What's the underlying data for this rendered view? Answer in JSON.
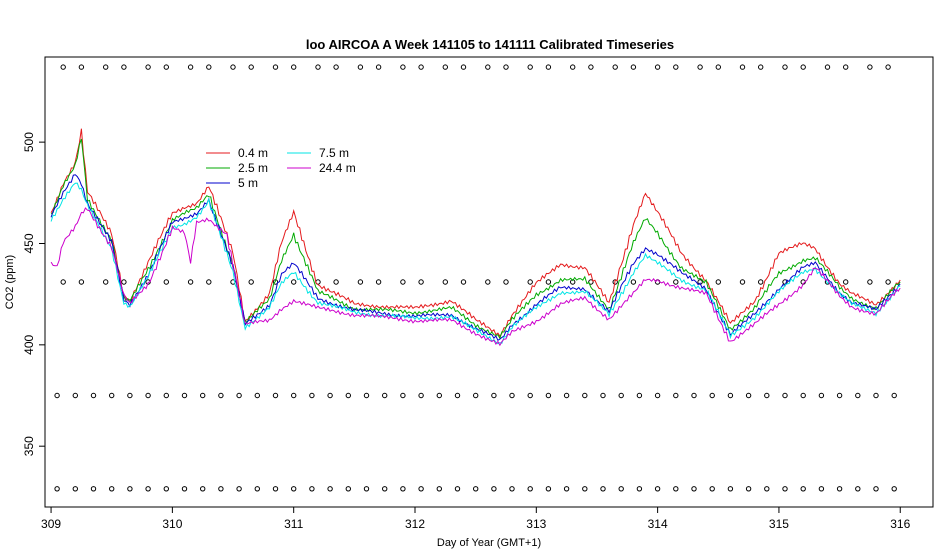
{
  "chart_data": {
    "type": "line",
    "title": "loo AIRCOA A  Week 141105 to 141111  Calibrated Timeseries",
    "xlabel": "Day of Year (GMT+1)",
    "ylabel": "CO2 (ppm)",
    "xlim": [
      308.95,
      316.27
    ],
    "ylim": [
      320,
      542
    ],
    "xticks": [
      309,
      310,
      311,
      312,
      313,
      314,
      315,
      316
    ],
    "yticks": [
      350,
      400,
      450,
      500
    ],
    "grid": false,
    "legend": {
      "placement": "top-left",
      "entries": [
        {
          "name": "0.4 m",
          "color": "#e41a1c"
        },
        {
          "name": "2.5 m",
          "color": "#00aa00"
        },
        {
          "name": "5 m",
          "color": "#0000cc"
        },
        {
          "name": "7.5 m",
          "color": "#00e5e5"
        },
        {
          "name": "24.4 m",
          "color": "#cc00cc"
        }
      ]
    },
    "series": [
      {
        "name": "0.4 m",
        "color": "#e41a1c",
        "x": [
          309.0,
          309.1,
          309.2,
          309.25,
          309.3,
          309.5,
          309.6,
          309.65,
          309.8,
          310.0,
          310.1,
          310.2,
          310.3,
          310.5,
          310.6,
          310.8,
          310.9,
          311.0,
          311.2,
          311.5,
          312.0,
          312.3,
          312.5,
          312.7,
          312.8,
          313.0,
          313.2,
          313.4,
          313.6,
          313.8,
          313.9,
          314.0,
          314.2,
          314.4,
          314.6,
          314.8,
          315.0,
          315.2,
          315.3,
          315.5,
          315.6,
          315.8,
          316.0
        ],
        "y": [
          465,
          480,
          490,
          505,
          475,
          455,
          425,
          422,
          440,
          465,
          468,
          470,
          478,
          445,
          412,
          425,
          450,
          465,
          430,
          420,
          418,
          422,
          412,
          405,
          415,
          430,
          440,
          438,
          420,
          460,
          475,
          465,
          445,
          432,
          410,
          422,
          445,
          450,
          448,
          430,
          425,
          420,
          432
        ]
      },
      {
        "name": "2.5 m",
        "color": "#00aa00",
        "x": [
          309.0,
          309.1,
          309.2,
          309.25,
          309.3,
          309.5,
          309.6,
          309.65,
          309.8,
          310.0,
          310.1,
          310.2,
          310.3,
          310.5,
          310.6,
          310.8,
          310.9,
          311.0,
          311.2,
          311.5,
          312.0,
          312.3,
          312.5,
          312.7,
          312.8,
          313.0,
          313.2,
          313.4,
          313.6,
          313.8,
          313.9,
          314.0,
          314.2,
          314.4,
          314.6,
          314.8,
          315.0,
          315.2,
          315.3,
          315.5,
          315.6,
          315.8,
          316.0
        ],
        "y": [
          464,
          478,
          488,
          502,
          472,
          452,
          423,
          421,
          437,
          462,
          465,
          467,
          474,
          440,
          411,
          422,
          442,
          455,
          426,
          418,
          416,
          418,
          410,
          404,
          412,
          425,
          432,
          432,
          418,
          450,
          462,
          455,
          438,
          430,
          408,
          418,
          435,
          442,
          443,
          428,
          423,
          418,
          431
        ]
      },
      {
        "name": "5 m",
        "color": "#0000cc",
        "x": [
          309.0,
          309.1,
          309.2,
          309.25,
          309.3,
          309.5,
          309.6,
          309.65,
          309.8,
          310.0,
          310.1,
          310.2,
          310.3,
          310.5,
          310.6,
          310.8,
          310.9,
          311.0,
          311.2,
          311.5,
          312.0,
          312.3,
          312.5,
          312.7,
          312.8,
          313.0,
          313.2,
          313.4,
          313.6,
          313.8,
          313.9,
          314.0,
          314.2,
          314.4,
          314.6,
          314.8,
          315.0,
          315.2,
          315.3,
          315.5,
          315.6,
          315.8,
          316.0
        ],
        "y": [
          463,
          475,
          485,
          480,
          470,
          450,
          422,
          420,
          435,
          460,
          462,
          465,
          472,
          438,
          410,
          420,
          435,
          440,
          423,
          417,
          414,
          415,
          408,
          402,
          410,
          420,
          428,
          428,
          416,
          440,
          448,
          445,
          435,
          428,
          405,
          415,
          428,
          438,
          440,
          426,
          421,
          417,
          430
        ]
      },
      {
        "name": "7.5 m",
        "color": "#00e5e5",
        "x": [
          309.0,
          309.1,
          309.2,
          309.25,
          309.3,
          309.5,
          309.6,
          309.65,
          309.8,
          310.0,
          310.1,
          310.2,
          310.3,
          310.5,
          310.6,
          310.8,
          310.9,
          311.0,
          311.2,
          311.5,
          312.0,
          312.3,
          312.5,
          312.7,
          312.8,
          313.0,
          313.2,
          313.4,
          313.6,
          313.8,
          313.9,
          314.0,
          314.2,
          314.4,
          314.6,
          314.8,
          315.0,
          315.2,
          315.3,
          315.5,
          315.6,
          315.8,
          316.0
        ],
        "y": [
          462,
          472,
          480,
          476,
          468,
          448,
          421,
          419,
          433,
          458,
          460,
          463,
          470,
          436,
          409,
          418,
          430,
          436,
          421,
          416,
          413,
          414,
          407,
          401,
          409,
          418,
          426,
          426,
          415,
          436,
          444,
          440,
          432,
          427,
          404,
          414,
          426,
          436,
          438,
          425,
          420,
          416,
          429
        ]
      },
      {
        "name": "24.4 m",
        "color": "#cc00cc",
        "x": [
          309.0,
          309.05,
          309.1,
          309.2,
          309.25,
          309.3,
          309.5,
          309.6,
          309.65,
          309.8,
          310.0,
          310.1,
          310.15,
          310.2,
          310.3,
          310.45,
          310.6,
          310.8,
          310.9,
          311.0,
          311.2,
          311.5,
          312.0,
          312.3,
          312.5,
          312.7,
          312.8,
          313.0,
          313.2,
          313.4,
          313.6,
          313.8,
          313.9,
          314.0,
          314.2,
          314.4,
          314.6,
          314.8,
          315.0,
          315.2,
          315.3,
          315.5,
          315.6,
          315.8,
          316.0
        ],
        "y": [
          440,
          438,
          450,
          458,
          465,
          468,
          448,
          424,
          420,
          430,
          458,
          455,
          440,
          460,
          462,
          455,
          410,
          412,
          418,
          422,
          418,
          415,
          412,
          412,
          406,
          400,
          406,
          412,
          420,
          423,
          413,
          425,
          432,
          432,
          428,
          425,
          402,
          410,
          420,
          430,
          438,
          424,
          419,
          415,
          428
        ]
      }
    ],
    "reference_points": [
      {
        "name": "537 ppm references",
        "x": [
          309.1,
          309.25,
          309.45,
          309.6,
          309.8,
          309.95,
          310.15,
          310.3,
          310.5,
          310.65,
          310.85,
          311.0,
          311.2,
          311.35,
          311.55,
          311.7,
          311.9,
          312.05,
          312.25,
          312.4,
          312.6,
          312.75,
          312.95,
          313.1,
          313.3,
          313.45,
          313.65,
          313.8,
          314.0,
          314.15,
          314.35,
          314.5,
          314.7,
          314.85,
          315.05,
          315.2,
          315.4,
          315.55,
          315.75,
          315.9
        ],
        "y": 537
      },
      {
        "name": "431 ppm references",
        "x": [
          309.1,
          309.25,
          309.45,
          309.6,
          309.8,
          309.95,
          310.15,
          310.3,
          310.5,
          310.65,
          310.85,
          311.0,
          311.2,
          311.35,
          311.55,
          311.7,
          311.9,
          312.05,
          312.25,
          312.4,
          312.6,
          312.75,
          312.95,
          313.1,
          313.3,
          313.45,
          313.65,
          313.8,
          314.0,
          314.15,
          314.35,
          314.5,
          314.7,
          314.85,
          315.05,
          315.2,
          315.4,
          315.55,
          315.75,
          315.9
        ],
        "y": 431
      },
      {
        "name": "375 ppm references",
        "x": [
          309.05,
          309.2,
          309.35,
          309.5,
          309.65,
          309.8,
          309.95,
          310.1,
          310.25,
          310.4,
          310.55,
          310.7,
          310.85,
          311.0,
          311.15,
          311.3,
          311.45,
          311.6,
          311.75,
          311.9,
          312.05,
          312.2,
          312.35,
          312.5,
          312.65,
          312.8,
          312.95,
          313.1,
          313.25,
          313.4,
          313.55,
          313.7,
          313.85,
          314.0,
          314.15,
          314.3,
          314.45,
          314.6,
          314.75,
          314.9,
          315.05,
          315.2,
          315.35,
          315.5,
          315.65,
          315.8,
          315.95
        ],
        "y": 375
      },
      {
        "name": "329 ppm references",
        "x": [
          309.05,
          309.2,
          309.35,
          309.5,
          309.65,
          309.8,
          309.95,
          310.1,
          310.25,
          310.4,
          310.55,
          310.7,
          310.85,
          311.0,
          311.15,
          311.3,
          311.45,
          311.6,
          311.75,
          311.9,
          312.05,
          312.2,
          312.35,
          312.5,
          312.65,
          312.8,
          312.95,
          313.1,
          313.25,
          313.4,
          313.55,
          313.7,
          313.85,
          314.0,
          314.15,
          314.3,
          314.45,
          314.6,
          314.75,
          314.9,
          315.05,
          315.2,
          315.35,
          315.5,
          315.65,
          315.8,
          315.95
        ],
        "y": 329
      }
    ]
  }
}
